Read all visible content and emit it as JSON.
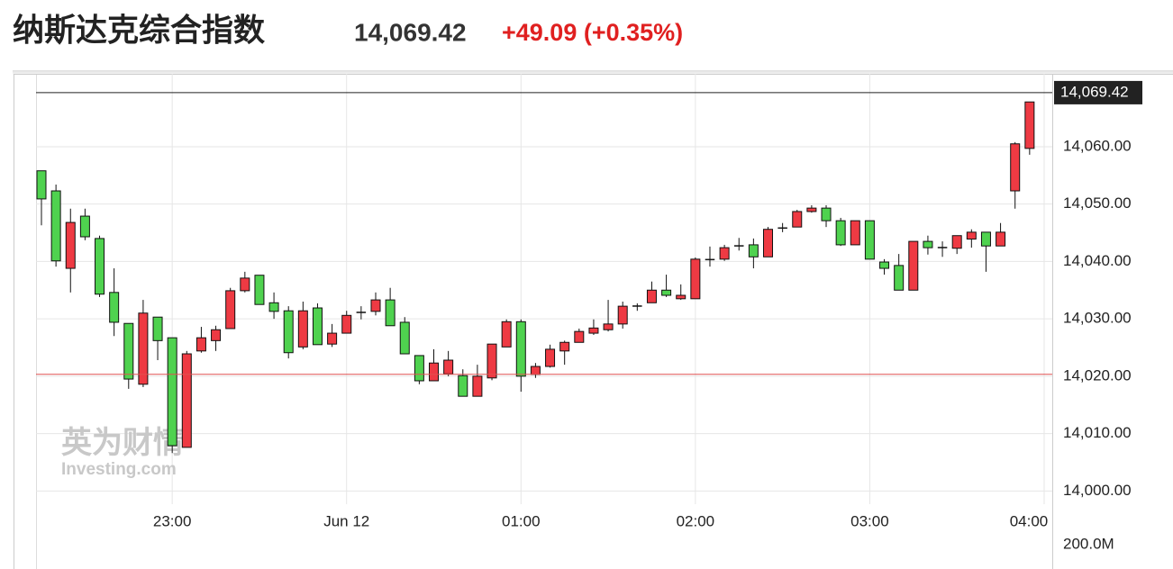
{
  "header": {
    "title": "纳斯达克综合指数",
    "price": "14,069.42",
    "change": "+49.09 (+0.35%)"
  },
  "watermark": {
    "line1": "英为财情",
    "line2": "Investing.com"
  },
  "chart_data": {
    "type": "candlestick",
    "categories": [
      null,
      null,
      null,
      null,
      null,
      null,
      null,
      null,
      null,
      "23:00",
      null,
      null,
      null,
      null,
      null,
      null,
      null,
      null,
      null,
      null,
      null,
      "Jun 12",
      null,
      null,
      null,
      null,
      null,
      null,
      null,
      null,
      null,
      null,
      null,
      "01:00",
      null,
      null,
      null,
      null,
      null,
      null,
      null,
      null,
      null,
      null,
      null,
      "02:00",
      null,
      null,
      null,
      null,
      null,
      null,
      null,
      null,
      null,
      null,
      null,
      "03:00",
      null,
      null,
      null,
      null,
      null,
      null,
      null,
      null,
      null,
      null,
      null,
      "04:00"
    ],
    "open": [
      14055.8,
      14052.3,
      14038.8,
      14047.9,
      14044.0,
      14034.6,
      14029.2,
      14018.6,
      14030.3,
      14026.7,
      14007.6,
      14024.4,
      14026.2,
      14028.3,
      14034.9,
      14037.6,
      14032.8,
      14031.4,
      14025.1,
      14031.9,
      14025.6,
      14027.5,
      14031.1,
      14031.3,
      14033.3,
      14029.4,
      14023.6,
      14019.2,
      14020.4,
      14020.1,
      14016.5,
      14019.7,
      14025.1,
      14029.5,
      14020.3,
      14021.7,
      14024.4,
      14025.9,
      14027.5,
      14028.1,
      14029.1,
      14032.2,
      14032.8,
      14035.0,
      14033.5,
      14033.5,
      14040.3,
      14040.4,
      14042.7,
      14042.9,
      14040.8,
      14045.8,
      14046.0,
      14048.7,
      14049.3,
      14047.1,
      14042.9,
      14047.1,
      14039.9,
      14039.3,
      14035.0,
      14043.5,
      14042.4,
      14042.3,
      14043.9,
      14045.1,
      14042.7,
      14052.3,
      14059.7,
      null
    ],
    "high": [
      14055.8,
      14053.4,
      14049.2,
      14049.2,
      14044.5,
      14038.8,
      14029.2,
      14033.3,
      14030.3,
      14026.7,
      14024.4,
      14028.6,
      14028.8,
      14035.4,
      14038.2,
      14037.6,
      14034.6,
      14032.2,
      14033.0,
      14032.7,
      14029.1,
      14031.4,
      14032.2,
      14034.6,
      14035.4,
      14030.3,
      14023.6,
      14024.7,
      14024.4,
      14021.2,
      14022.0,
      14025.6,
      14029.9,
      14029.9,
      14022.3,
      14025.5,
      14026.2,
      14028.3,
      14029.9,
      14033.3,
      14033.0,
      14032.7,
      14036.5,
      14037.7,
      14036.0,
      14040.7,
      14042.6,
      14042.9,
      14044.1,
      14044.0,
      14046.0,
      14046.7,
      14049.0,
      14049.8,
      14049.8,
      14047.6,
      14047.1,
      14047.1,
      14040.4,
      14041.3,
      14043.5,
      14044.5,
      14043.5,
      14044.5,
      14045.6,
      14045.1,
      14046.7,
      14060.8,
      14067.8,
      null
    ],
    "low": [
      14046.3,
      14039.1,
      14034.6,
      14043.7,
      14033.8,
      14027.0,
      14017.8,
      14018.1,
      14022.8,
      14006.6,
      14007.6,
      14024.1,
      14024.4,
      14028.3,
      14034.6,
      14032.5,
      14030.0,
      14023.1,
      14024.7,
      14025.5,
      14025.1,
      14027.5,
      14029.9,
      14030.6,
      14028.8,
      14023.9,
      14018.6,
      14019.2,
      14020.0,
      14016.5,
      14016.5,
      14019.3,
      14025.1,
      14017.3,
      14019.7,
      14021.5,
      14022.0,
      14025.9,
      14027.2,
      14027.8,
      14028.3,
      14031.4,
      14032.8,
      14033.8,
      14033.3,
      14033.5,
      14039.1,
      14040.1,
      14041.9,
      14038.8,
      14040.8,
      14045.1,
      14046.0,
      14048.5,
      14046.0,
      14042.7,
      14042.9,
      14040.4,
      14037.7,
      14035.0,
      14035.0,
      14041.2,
      14040.8,
      14041.3,
      14042.4,
      14038.2,
      14042.7,
      14049.2,
      14058.6,
      null
    ],
    "close": [
      14050.9,
      14040.1,
      14046.8,
      14044.3,
      14034.3,
      14029.4,
      14019.5,
      14031.0,
      14026.2,
      14007.9,
      14023.9,
      14026.7,
      14028.1,
      14034.9,
      14037.1,
      14032.5,
      14031.3,
      14024.1,
      14031.4,
      14025.5,
      14027.5,
      14030.6,
      14031.2,
      14033.3,
      14028.8,
      14023.9,
      14019.2,
      14022.3,
      14022.8,
      14016.5,
      14020.0,
      14025.6,
      14029.5,
      14020.0,
      14021.7,
      14024.7,
      14025.9,
      14027.8,
      14028.4,
      14029.1,
      14032.2,
      14032.3,
      14035.0,
      14034.1,
      14034.1,
      14040.4,
      14040.4,
      14042.4,
      14042.8,
      14040.8,
      14045.6,
      14045.9,
      14048.7,
      14049.3,
      14047.1,
      14042.9,
      14047.1,
      14040.4,
      14038.8,
      14035.0,
      14043.5,
      14042.4,
      14042.5,
      14044.5,
      14045.1,
      14042.7,
      14045.1,
      14060.5,
      14067.8,
      null
    ],
    "up_color": "#ee3a43",
    "down_color": "#4fd24f",
    "ylim": [
      13986.4,
      14072.7
    ],
    "yticks": [
      {
        "value": 14000,
        "label": "14,000.00"
      },
      {
        "value": 14010,
        "label": "14,010.00"
      },
      {
        "value": 14020,
        "label": "14,020.00"
      },
      {
        "value": 14030,
        "label": "14,030.00"
      },
      {
        "value": 14040,
        "label": "14,040.00"
      },
      {
        "value": 14050,
        "label": "14,050.00"
      },
      {
        "value": 14060,
        "label": "14,060.00"
      }
    ],
    "last_price": {
      "value": 14069.42,
      "label": "14,069.42"
    },
    "prev_close": 14020.33,
    "volume_label": "200.0M",
    "grid": true
  }
}
